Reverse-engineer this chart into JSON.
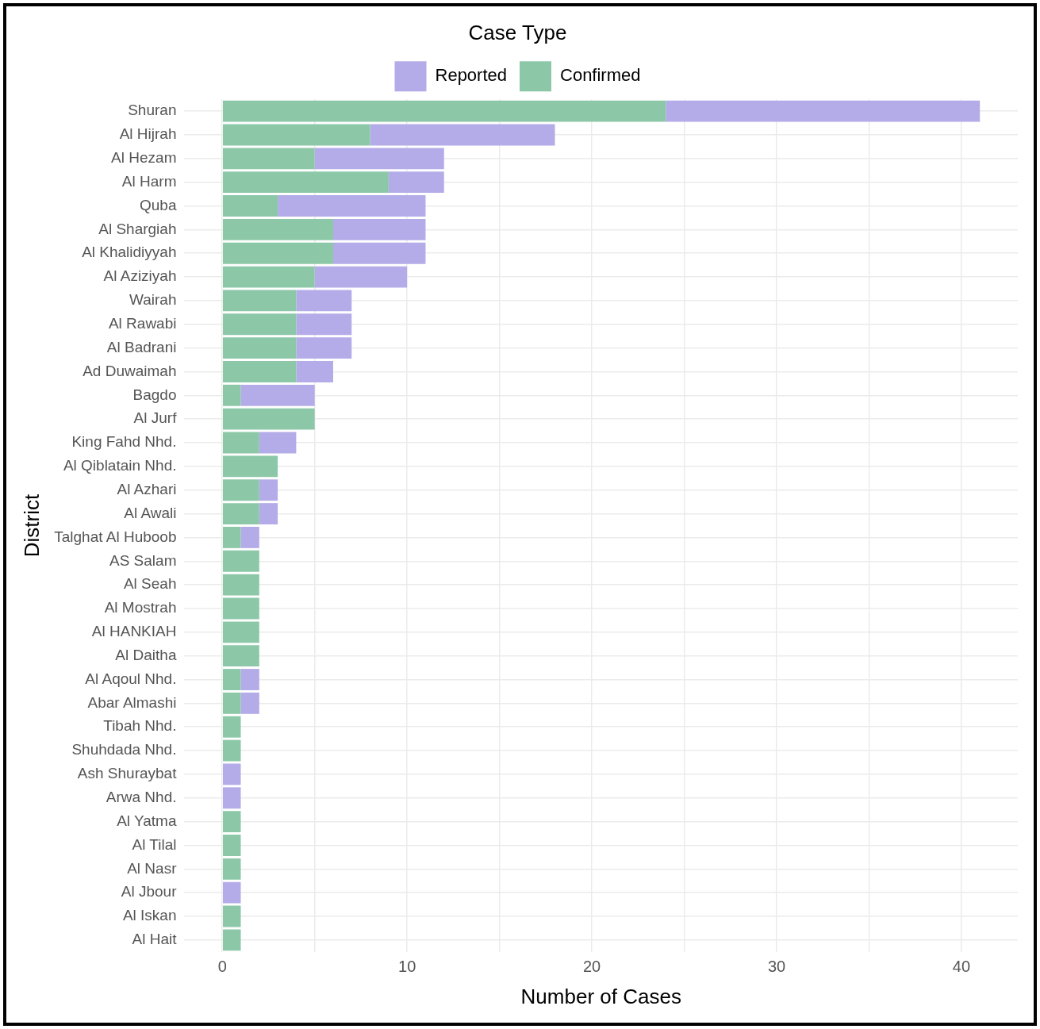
{
  "chart_data": {
    "type": "bar",
    "orientation": "horizontal",
    "stacked": true,
    "legend": "top",
    "legend_title": "Case Type",
    "xlabel": "Number of Cases",
    "ylabel": "District",
    "grid": true,
    "categories": [
      "Shuran",
      "Al Hijrah",
      "Al Hezam",
      "Al Harm",
      "Quba",
      "Al Shargiah",
      "Al Khalidiyyah",
      "Al Aziziyah",
      "Wairah",
      "Al Rawabi",
      "Al Badrani",
      "Ad Duwaimah",
      "Bagdo",
      "Al Jurf",
      "King Fahd Nhd.",
      "Al Qiblatain Nhd.",
      "Al Azhari",
      "Al Awali",
      "Talghat Al Huboob",
      "AS Salam",
      "Al Seah",
      "Al Mostrah",
      "Al HANKIAH",
      "Al Daitha",
      "Al Aqoul Nhd.",
      "Abar Almashi",
      "Tibah Nhd.",
      "Shuhdada Nhd.",
      "Ash Shuraybat",
      "Arwa Nhd.",
      "Al Yatma",
      "Al Tilal",
      "Al Nasr",
      "Al Jbour",
      "Al Iskan",
      "Al Hait"
    ],
    "series": [
      {
        "name": "Confirmed",
        "color": "#8cc8a8",
        "values": [
          24,
          8,
          5,
          9,
          3,
          6,
          6,
          5,
          4,
          4,
          4,
          4,
          1,
          5,
          2,
          3,
          2,
          2,
          1,
          2,
          2,
          2,
          2,
          2,
          1,
          1,
          1,
          1,
          0,
          0,
          1,
          1,
          1,
          0,
          1,
          1
        ]
      },
      {
        "name": "Reported",
        "color": "#b4ace8",
        "values": [
          17,
          10,
          7,
          3,
          8,
          5,
          5,
          5,
          3,
          3,
          3,
          2,
          4,
          0,
          2,
          0,
          1,
          1,
          1,
          0,
          0,
          0,
          0,
          0,
          1,
          1,
          0,
          0,
          1,
          1,
          0,
          0,
          0,
          1,
          0,
          0
        ]
      }
    ],
    "xlim": [
      -2.05,
      43.05
    ],
    "xticks": [
      0,
      {
        "value": 5,
        "label": null
      },
      10,
      {
        "value": 15,
        "label": null
      },
      20,
      {
        "value": 25,
        "label": null
      },
      30,
      {
        "value": 35,
        "label": null
      },
      40
    ]
  }
}
